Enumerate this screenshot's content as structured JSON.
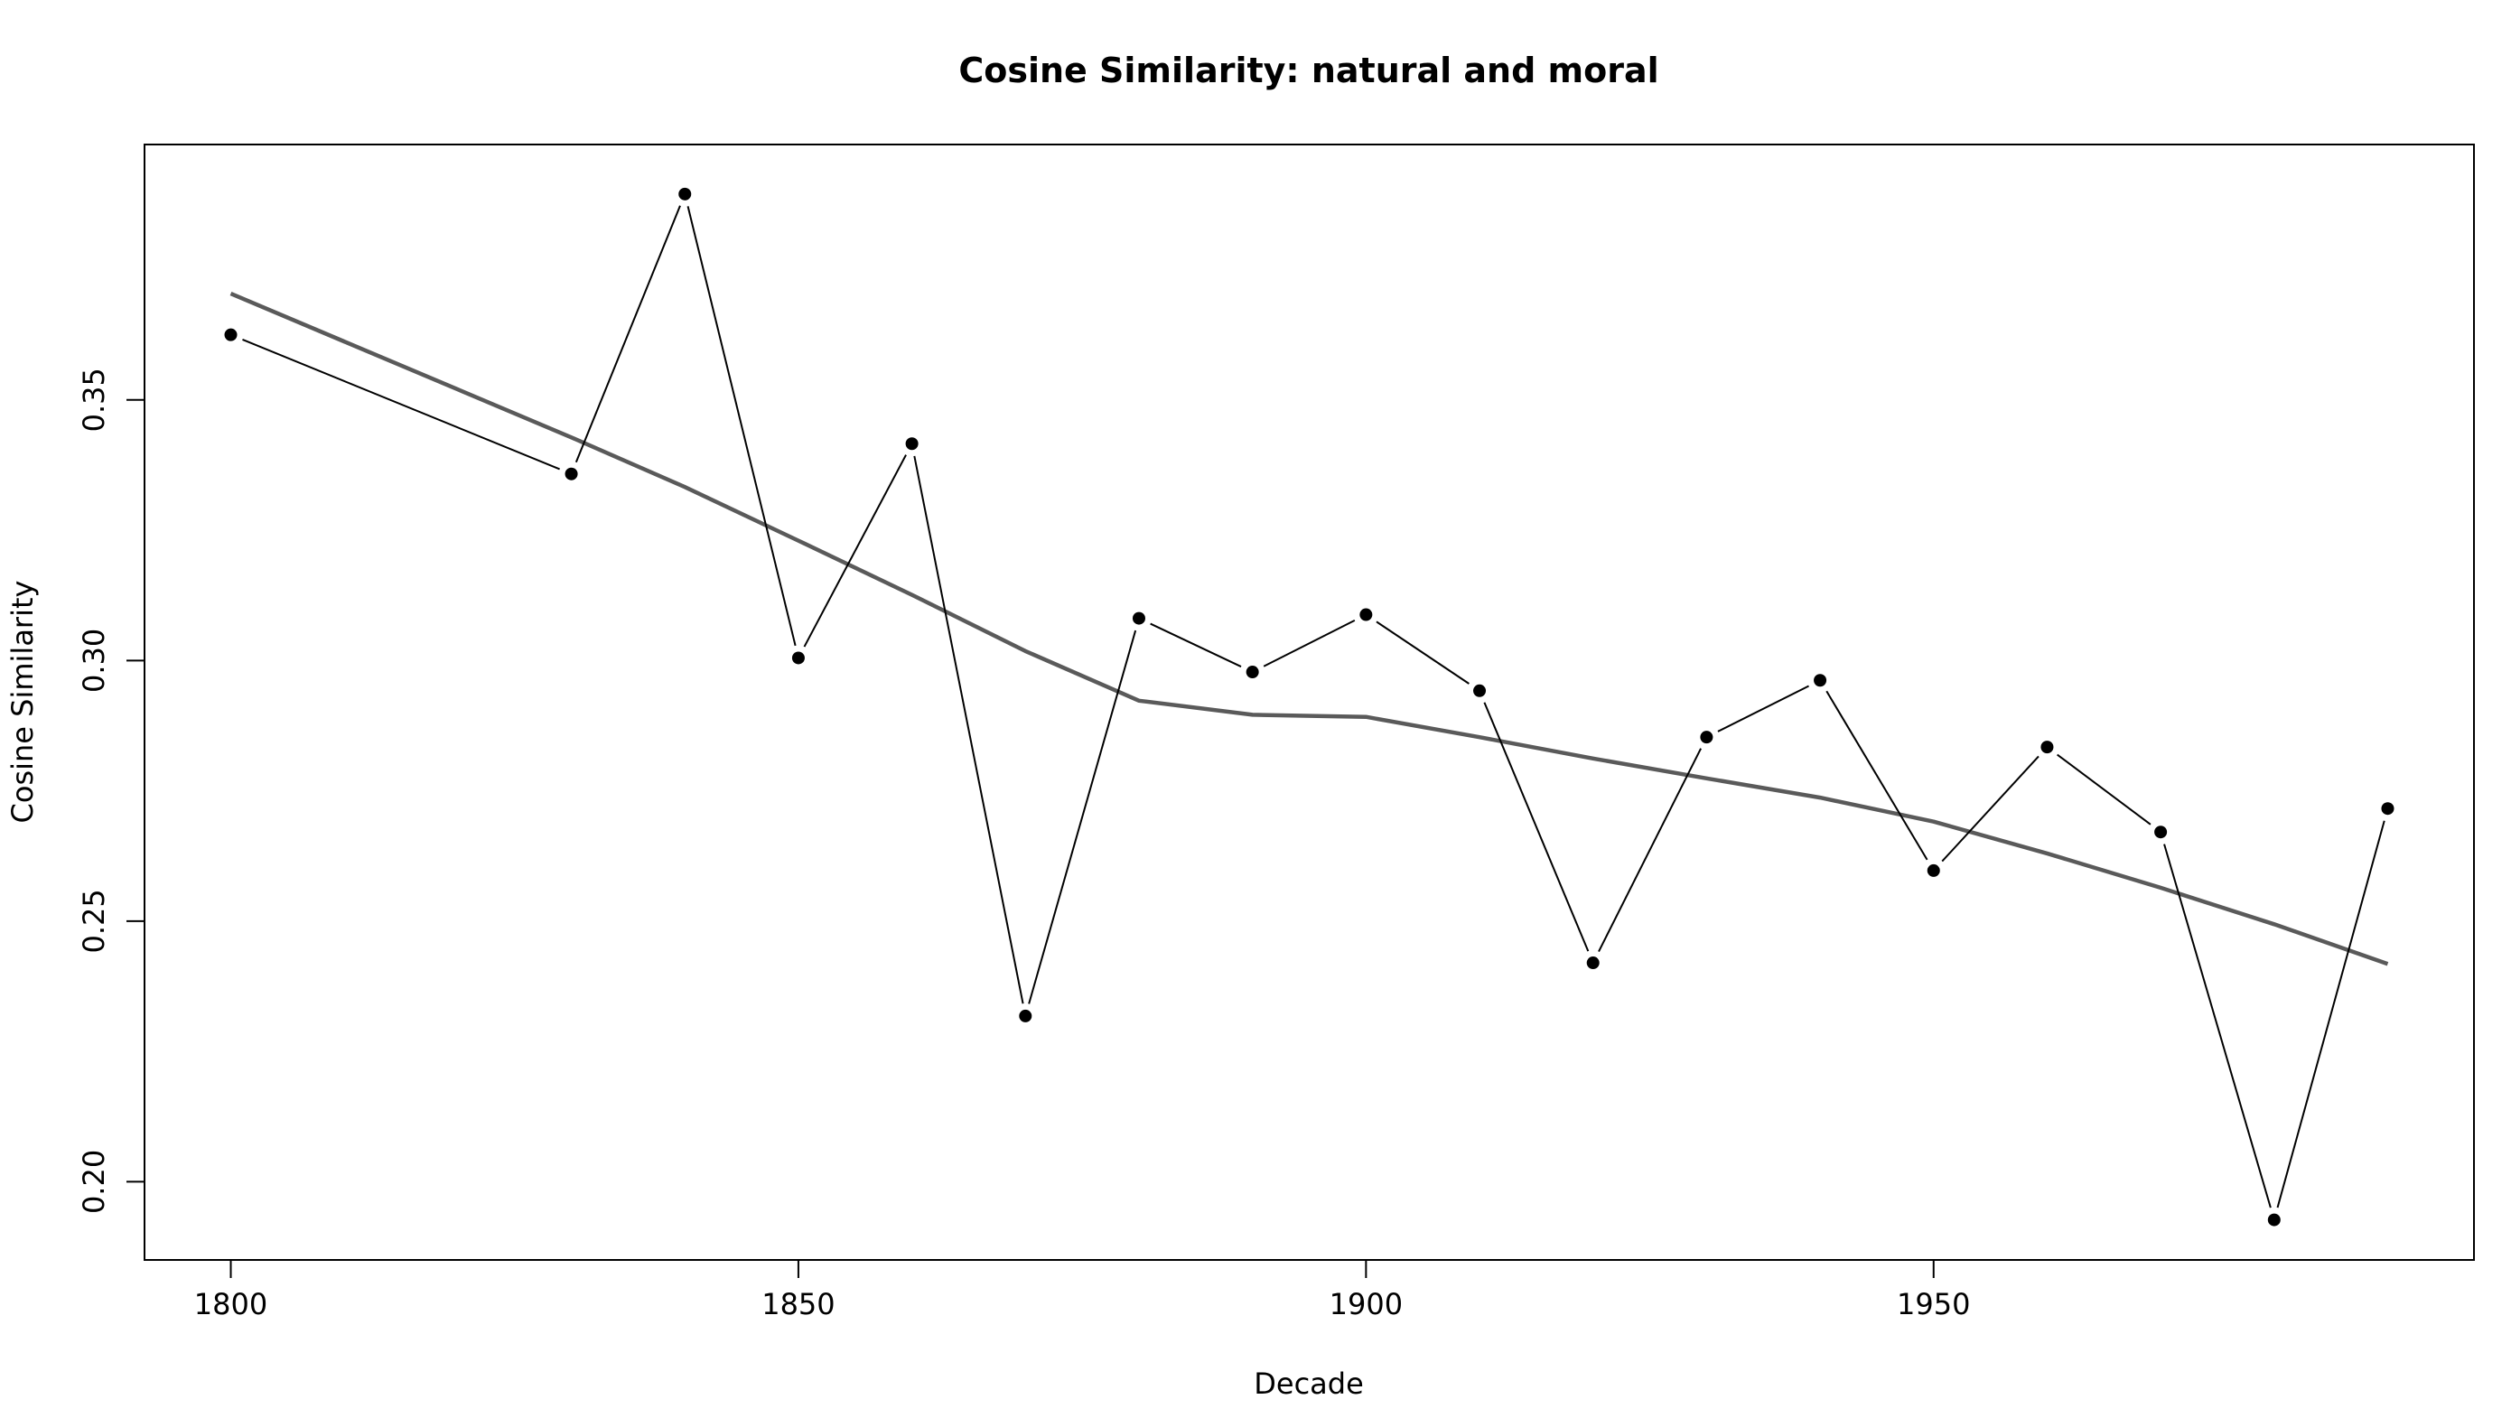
{
  "chart_data": {
    "type": "line",
    "title": "Cosine Similarity: natural and moral",
    "xlabel": "Decade",
    "ylabel": "Cosine Similarity",
    "xlim": [
      1792.4,
      1997.6
    ],
    "ylim": [
      0.185,
      0.399
    ],
    "x_ticks": [
      1800,
      1850,
      1900,
      1950
    ],
    "y_ticks": [
      0.2,
      0.25,
      0.3,
      0.35
    ],
    "x_tick_labels": [
      "1800",
      "1850",
      "1900",
      "1950"
    ],
    "y_tick_labels": [
      "0.20",
      "0.25",
      "0.30",
      "0.35"
    ],
    "grid": false,
    "series": [
      {
        "style": "points-and-lines",
        "color": "#000000",
        "x": [
          1800,
          1830,
          1840,
          1850,
          1860,
          1870,
          1880,
          1890,
          1900,
          1910,
          1920,
          1930,
          1940,
          1950,
          1960,
          1970,
          1980,
          1990
        ],
        "values": [
          0.3625,
          0.3358,
          0.3895,
          0.3005,
          0.3416,
          0.2318,
          0.3081,
          0.2978,
          0.3088,
          0.2942,
          0.242,
          0.2853,
          0.2962,
          0.2597,
          0.2834,
          0.2671,
          0.1927,
          0.2716
        ]
      },
      {
        "style": "smooth-line",
        "color": "#5a5a5a",
        "x": [
          1800,
          1830,
          1840,
          1850,
          1860,
          1870,
          1880,
          1890,
          1900,
          1910,
          1920,
          1930,
          1940,
          1950,
          1960,
          1970,
          1980,
          1990
        ],
        "values": [
          0.3704,
          0.3428,
          0.3333,
          0.323,
          0.3126,
          0.3018,
          0.2923,
          0.2896,
          0.2892,
          0.2853,
          0.2812,
          0.2774,
          0.2737,
          0.2691,
          0.263,
          0.2564,
          0.2494,
          0.2418
        ]
      }
    ]
  }
}
